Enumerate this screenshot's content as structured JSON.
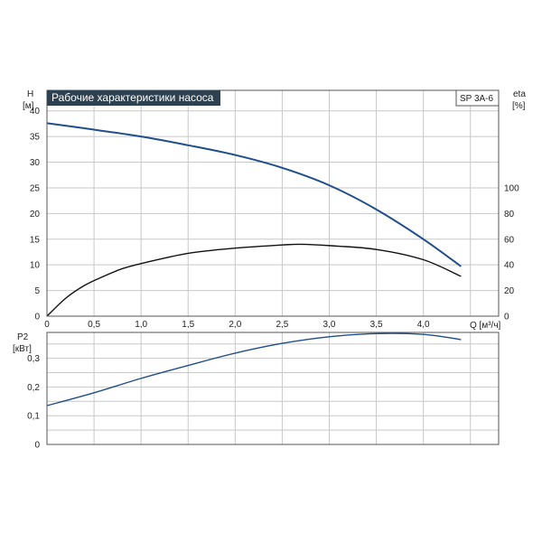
{
  "chart_data": [
    {
      "type": "line",
      "title": "Рабочие характеристики насоса",
      "model_label": "SP 3A-6",
      "xlabel": "Q [м³/ч]",
      "x_ticks": [
        "0",
        "0,5",
        "1,0",
        "1,5",
        "2,0",
        "2,5",
        "3,0",
        "3,5",
        "4,0"
      ],
      "xlim": [
        0,
        4.8
      ],
      "left_axis": {
        "label_line1": "H",
        "label_line2": "[м]",
        "ticks": [
          "0",
          "5",
          "10",
          "15",
          "20",
          "25",
          "30",
          "35",
          "40"
        ],
        "ylim": [
          0,
          44
        ]
      },
      "right_axis": {
        "label_line1": "eta",
        "label_line2": "[%]",
        "ticks": [
          "0",
          "20",
          "40",
          "60",
          "80",
          "100"
        ],
        "ylim": [
          0,
          176
        ]
      },
      "grid": true,
      "series": [
        {
          "axis": "left",
          "color": "#1f4e8c",
          "x": [
            0,
            0.4,
            1.0,
            1.5,
            2.0,
            2.5,
            3.0,
            3.5,
            4.0,
            4.4
          ],
          "y": [
            37.6,
            36.6,
            35.0,
            33.3,
            31.4,
            28.9,
            25.5,
            20.8,
            15.0,
            9.7
          ]
        },
        {
          "axis": "right",
          "color": "#111111",
          "x": [
            0,
            0.2,
            0.4,
            0.6,
            0.8,
            1.0,
            1.5,
            2.0,
            2.5,
            2.7,
            3.0,
            3.5,
            4.0,
            4.4
          ],
          "y": [
            0,
            14,
            24,
            31,
            37,
            41,
            49,
            53,
            55.5,
            56,
            55,
            52,
            44,
            31
          ]
        }
      ]
    },
    {
      "type": "line",
      "ylabel_line1": "P2",
      "ylabel_line2": "[кВт]",
      "y_ticks": [
        "0",
        "0,1",
        "0,2",
        "0,3"
      ],
      "ylim": [
        0,
        0.39
      ],
      "xlim": [
        0,
        4.8
      ],
      "grid": true,
      "series": [
        {
          "color": "#1f4e8c",
          "x": [
            0,
            0.5,
            1.0,
            1.5,
            2.0,
            2.5,
            3.0,
            3.5,
            4.0,
            4.4
          ],
          "y": [
            0.135,
            0.18,
            0.23,
            0.275,
            0.318,
            0.352,
            0.375,
            0.386,
            0.383,
            0.365
          ]
        }
      ]
    }
  ]
}
